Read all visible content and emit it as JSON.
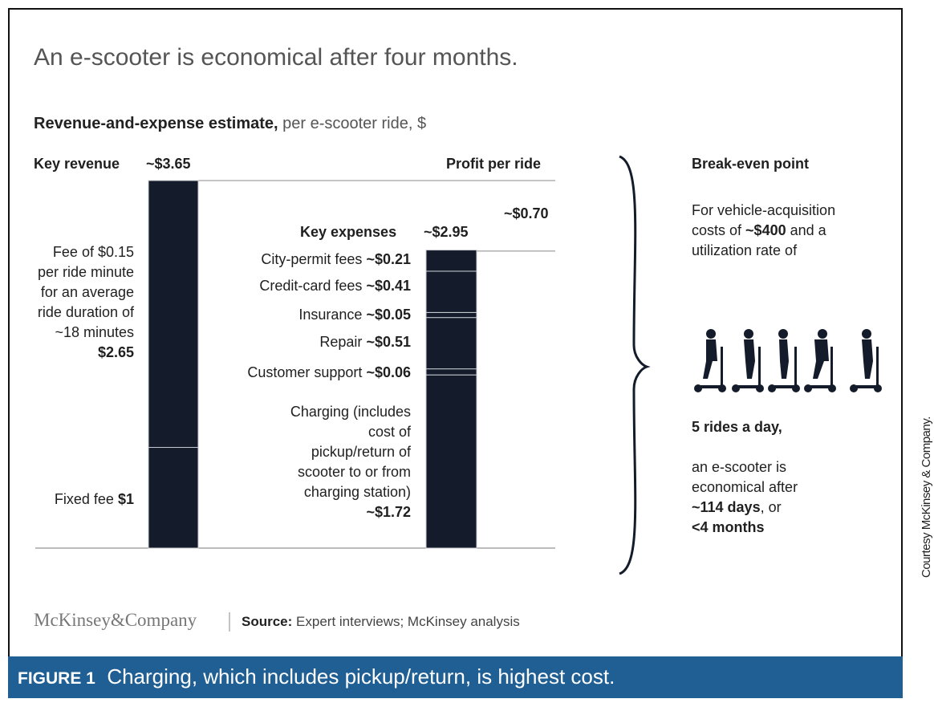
{
  "chart_data": {
    "type": "waterfall",
    "title": "An e-scooter is economical after four months.",
    "subtitle": {
      "bold": "Revenue-and-expense estimate,",
      "text": "per e-scooter ride, $"
    },
    "color": "#141c2b",
    "revenue": {
      "label": "Key revenue",
      "total": 3.65,
      "total_label": "~$3.65",
      "segments": [
        {
          "name": "Fee of $0.15 per ride minute for an average ride duration of ~18 minutes",
          "value": 2.65,
          "value_label": "$2.65"
        },
        {
          "name": "Fixed fee",
          "value": 1,
          "value_label": "$1"
        }
      ]
    },
    "expenses": {
      "label": "Key expenses",
      "total": 2.95,
      "total_label": "~$2.95",
      "segments": [
        {
          "name": "City-permit fees",
          "value": 0.21,
          "value_label": "~$0.21"
        },
        {
          "name": "Credit-card fees",
          "value": 0.41,
          "value_label": "~$0.41"
        },
        {
          "name": "Insurance",
          "value": 0.05,
          "value_label": "~$0.05"
        },
        {
          "name": "Repair",
          "value": 0.51,
          "value_label": "~$0.51"
        },
        {
          "name": "Customer support",
          "value": 0.06,
          "value_label": "~$0.06"
        },
        {
          "name": "Charging (includes cost of pickup/return of scooter to or from charging station)",
          "value": 1.72,
          "value_label": "~$1.72"
        }
      ]
    },
    "profit": {
      "label": "Profit per ride",
      "value": 0.7,
      "value_label": "~$0.70"
    },
    "break_even": {
      "title": "Break-even point",
      "text1": "For vehicle-acquisition costs of",
      "cost": "~$400",
      "text2": "and a utilization rate of",
      "rides": "5 rides a day,",
      "text3": "an e-scooter is economical after",
      "days": "~114 days",
      "text4": ", or",
      "months": "<4 months"
    },
    "footer": {
      "brand": "McKinsey&Company",
      "source_label": "Source:",
      "source": "Expert interviews; McKinsey analysis"
    },
    "caption": {
      "label": "FIGURE 1",
      "text": "Charging, which includes pickup/return, is highest cost."
    },
    "credit": "Courtesy McKinsey & Company."
  }
}
